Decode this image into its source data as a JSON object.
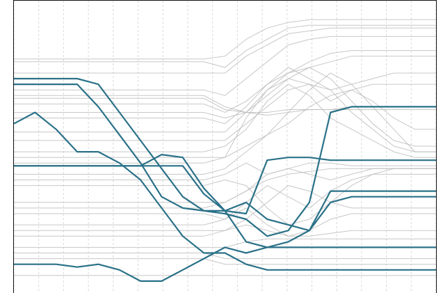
{
  "chart_data": {
    "type": "line",
    "title": "",
    "xlabel": "",
    "ylabel": "",
    "grid": "vertical-dashed",
    "legend": "none",
    "xlim": [
      0,
      100
    ],
    "ylim": [
      0,
      100
    ],
    "colors": {
      "background": "#ffffff",
      "grid": "#d8d8d8",
      "gray_series": "#bdbdbd",
      "highlight_series": "#2a7188",
      "frame": "#111111"
    },
    "x": [
      0,
      5,
      10,
      15,
      20,
      25,
      30,
      35,
      40,
      45,
      50,
      55,
      60,
      65,
      70,
      75,
      80,
      85,
      90,
      95,
      100
    ],
    "highlight_series": [
      {
        "values": [
          74,
          74,
          74,
          74,
          72,
          62,
          52,
          42,
          32,
          27,
          27,
          16,
          14,
          16,
          20,
          30,
          32,
          32,
          32,
          32,
          32
        ]
      },
      {
        "values": [
          72,
          72,
          72,
          72,
          64,
          54,
          44,
          32,
          28,
          27,
          26,
          24,
          18,
          20,
          30,
          62,
          64,
          64,
          64,
          64,
          64
        ]
      },
      {
        "values": [
          58,
          62,
          56,
          48,
          48,
          44,
          38,
          28,
          18,
          12,
          12,
          8,
          6,
          6,
          6,
          6,
          6,
          6,
          6,
          6,
          6
        ]
      },
      {
        "values": [
          43,
          43,
          43,
          43,
          43,
          43,
          43,
          47,
          46,
          35,
          27,
          30,
          24,
          22,
          20,
          34,
          34,
          34,
          34,
          34,
          34
        ]
      },
      {
        "values": [
          43,
          43,
          43,
          43,
          43,
          43,
          43,
          43,
          43,
          33,
          27,
          26,
          45,
          46,
          46,
          45,
          45,
          45,
          45,
          45,
          45
        ]
      },
      {
        "values": [
          8,
          8,
          8,
          7,
          8,
          6,
          2,
          2,
          6,
          10,
          14,
          12,
          14,
          14,
          14,
          14,
          14,
          14,
          14,
          14,
          14
        ]
      }
    ],
    "gray_series": [
      {
        "values": [
          81,
          81,
          81,
          81,
          81,
          81,
          81,
          81,
          81,
          81,
          82,
          88,
          92,
          94,
          95,
          95,
          95,
          95,
          95,
          95,
          95
        ]
      },
      {
        "values": [
          80,
          80,
          80,
          80,
          80,
          80,
          80,
          80,
          80,
          80,
          78,
          84,
          88,
          92,
          93,
          93,
          93,
          93,
          93,
          93,
          93
        ]
      },
      {
        "values": [
          76,
          76,
          76,
          76,
          76,
          76,
          76,
          76,
          76,
          76,
          76,
          82,
          86,
          90,
          91,
          92,
          92,
          92,
          92,
          92,
          92
        ]
      },
      {
        "values": [
          70,
          70,
          70,
          70,
          70,
          70,
          70,
          70,
          70,
          70,
          68,
          74,
          80,
          86,
          88,
          89,
          89,
          89,
          89,
          89,
          89
        ]
      },
      {
        "values": [
          68,
          68,
          68,
          68,
          68,
          68,
          68,
          68,
          68,
          68,
          64,
          62,
          62,
          63,
          63,
          63,
          63,
          63,
          63,
          63,
          63
        ]
      },
      {
        "values": [
          67,
          67,
          67,
          67,
          67,
          67,
          67,
          67,
          67,
          67,
          63,
          62,
          61,
          62,
          63,
          63,
          64,
          64,
          64,
          64,
          64
        ]
      },
      {
        "values": [
          65,
          65,
          65,
          65,
          65,
          65,
          65,
          65,
          65,
          65,
          62,
          66,
          72,
          76,
          80,
          83,
          84,
          84,
          84,
          84,
          84
        ]
      },
      {
        "values": [
          62,
          62,
          62,
          62,
          62,
          62,
          62,
          62,
          62,
          62,
          60,
          62,
          70,
          74,
          78,
          80,
          82,
          82,
          82,
          82,
          82
        ]
      },
      {
        "values": [
          60,
          60,
          60,
          60,
          60,
          60,
          60,
          60,
          60,
          60,
          58,
          64,
          72,
          78,
          74,
          70,
          72,
          74,
          76,
          76,
          76
        ]
      },
      {
        "values": [
          55,
          55,
          55,
          55,
          55,
          55,
          55,
          55,
          55,
          55,
          55,
          62,
          68,
          74,
          72,
          66,
          70,
          72,
          72,
          72,
          72
        ]
      },
      {
        "values": [
          52,
          52,
          52,
          52,
          52,
          52,
          52,
          52,
          52,
          52,
          52,
          58,
          64,
          70,
          72,
          70,
          62,
          56,
          50,
          48,
          48
        ]
      },
      {
        "values": [
          48,
          48,
          48,
          48,
          48,
          48,
          48,
          48,
          48,
          48,
          50,
          56,
          66,
          72,
          68,
          60,
          56,
          52,
          48,
          46,
          46
        ]
      },
      {
        "values": [
          46,
          46,
          46,
          46,
          46,
          46,
          46,
          46,
          46,
          46,
          46,
          50,
          54,
          58,
          64,
          68,
          70,
          66,
          60,
          56,
          56
        ]
      },
      {
        "values": [
          44,
          44,
          44,
          44,
          44,
          44,
          44,
          44,
          44,
          44,
          46,
          60,
          70,
          76,
          78,
          74,
          66,
          58,
          52,
          50,
          50
        ]
      },
      {
        "values": [
          40,
          40,
          40,
          40,
          40,
          40,
          40,
          40,
          40,
          40,
          42,
          48,
          54,
          62,
          70,
          76,
          72,
          64,
          56,
          48,
          48
        ]
      },
      {
        "values": [
          38,
          38,
          38,
          38,
          38,
          38,
          38,
          38,
          38,
          38,
          40,
          44,
          40,
          42,
          44,
          44,
          43,
          43,
          43,
          43,
          43
        ]
      },
      {
        "values": [
          36,
          36,
          36,
          36,
          36,
          36,
          36,
          36,
          36,
          36,
          38,
          36,
          28,
          22,
          24,
          30,
          36,
          40,
          42,
          42,
          42
        ]
      },
      {
        "values": [
          30,
          30,
          30,
          30,
          30,
          30,
          30,
          30,
          30,
          30,
          30,
          34,
          40,
          42,
          40,
          38,
          40,
          42,
          42,
          42,
          42
        ]
      },
      {
        "values": [
          28,
          28,
          28,
          28,
          28,
          28,
          28,
          28,
          28,
          28,
          30,
          34,
          38,
          40,
          41,
          42,
          42,
          42,
          42,
          42,
          42
        ]
      },
      {
        "values": [
          26,
          26,
          26,
          26,
          26,
          26,
          26,
          26,
          26,
          26,
          24,
          30,
          36,
          32,
          28,
          34,
          38,
          40,
          40,
          40,
          40
        ]
      },
      {
        "values": [
          22,
          22,
          22,
          22,
          22,
          22,
          22,
          22,
          22,
          22,
          24,
          28,
          22,
          18,
          20,
          24,
          26,
          26,
          26,
          26,
          26
        ]
      },
      {
        "values": [
          20,
          20,
          20,
          20,
          20,
          20,
          20,
          20,
          20,
          20,
          20,
          24,
          30,
          36,
          34,
          30,
          28,
          28,
          28,
          28,
          28
        ]
      },
      {
        "values": [
          18,
          18,
          18,
          18,
          18,
          18,
          18,
          18,
          18,
          18,
          20,
          22,
          20,
          18,
          18,
          19,
          20,
          20,
          20,
          20,
          20
        ]
      },
      {
        "values": [
          14,
          14,
          14,
          14,
          14,
          14,
          14,
          14,
          14,
          14,
          14,
          16,
          17,
          17,
          17,
          17,
          17,
          17,
          17,
          17,
          17
        ]
      },
      {
        "values": [
          12,
          12,
          12,
          12,
          12,
          12,
          12,
          12,
          12,
          12,
          10,
          10,
          10,
          10,
          10,
          10,
          10,
          10,
          10,
          10,
          10
        ]
      },
      {
        "values": [
          10,
          10,
          10,
          10,
          10,
          10,
          10,
          10,
          10,
          10,
          8,
          8,
          8,
          8,
          8,
          8,
          8,
          8,
          8,
          8,
          8
        ]
      },
      {
        "values": [
          4,
          4,
          4,
          4,
          4,
          4,
          4,
          4,
          4,
          4,
          4,
          4,
          4,
          4,
          4,
          4,
          4,
          4,
          4,
          4,
          4
        ]
      }
    ]
  }
}
